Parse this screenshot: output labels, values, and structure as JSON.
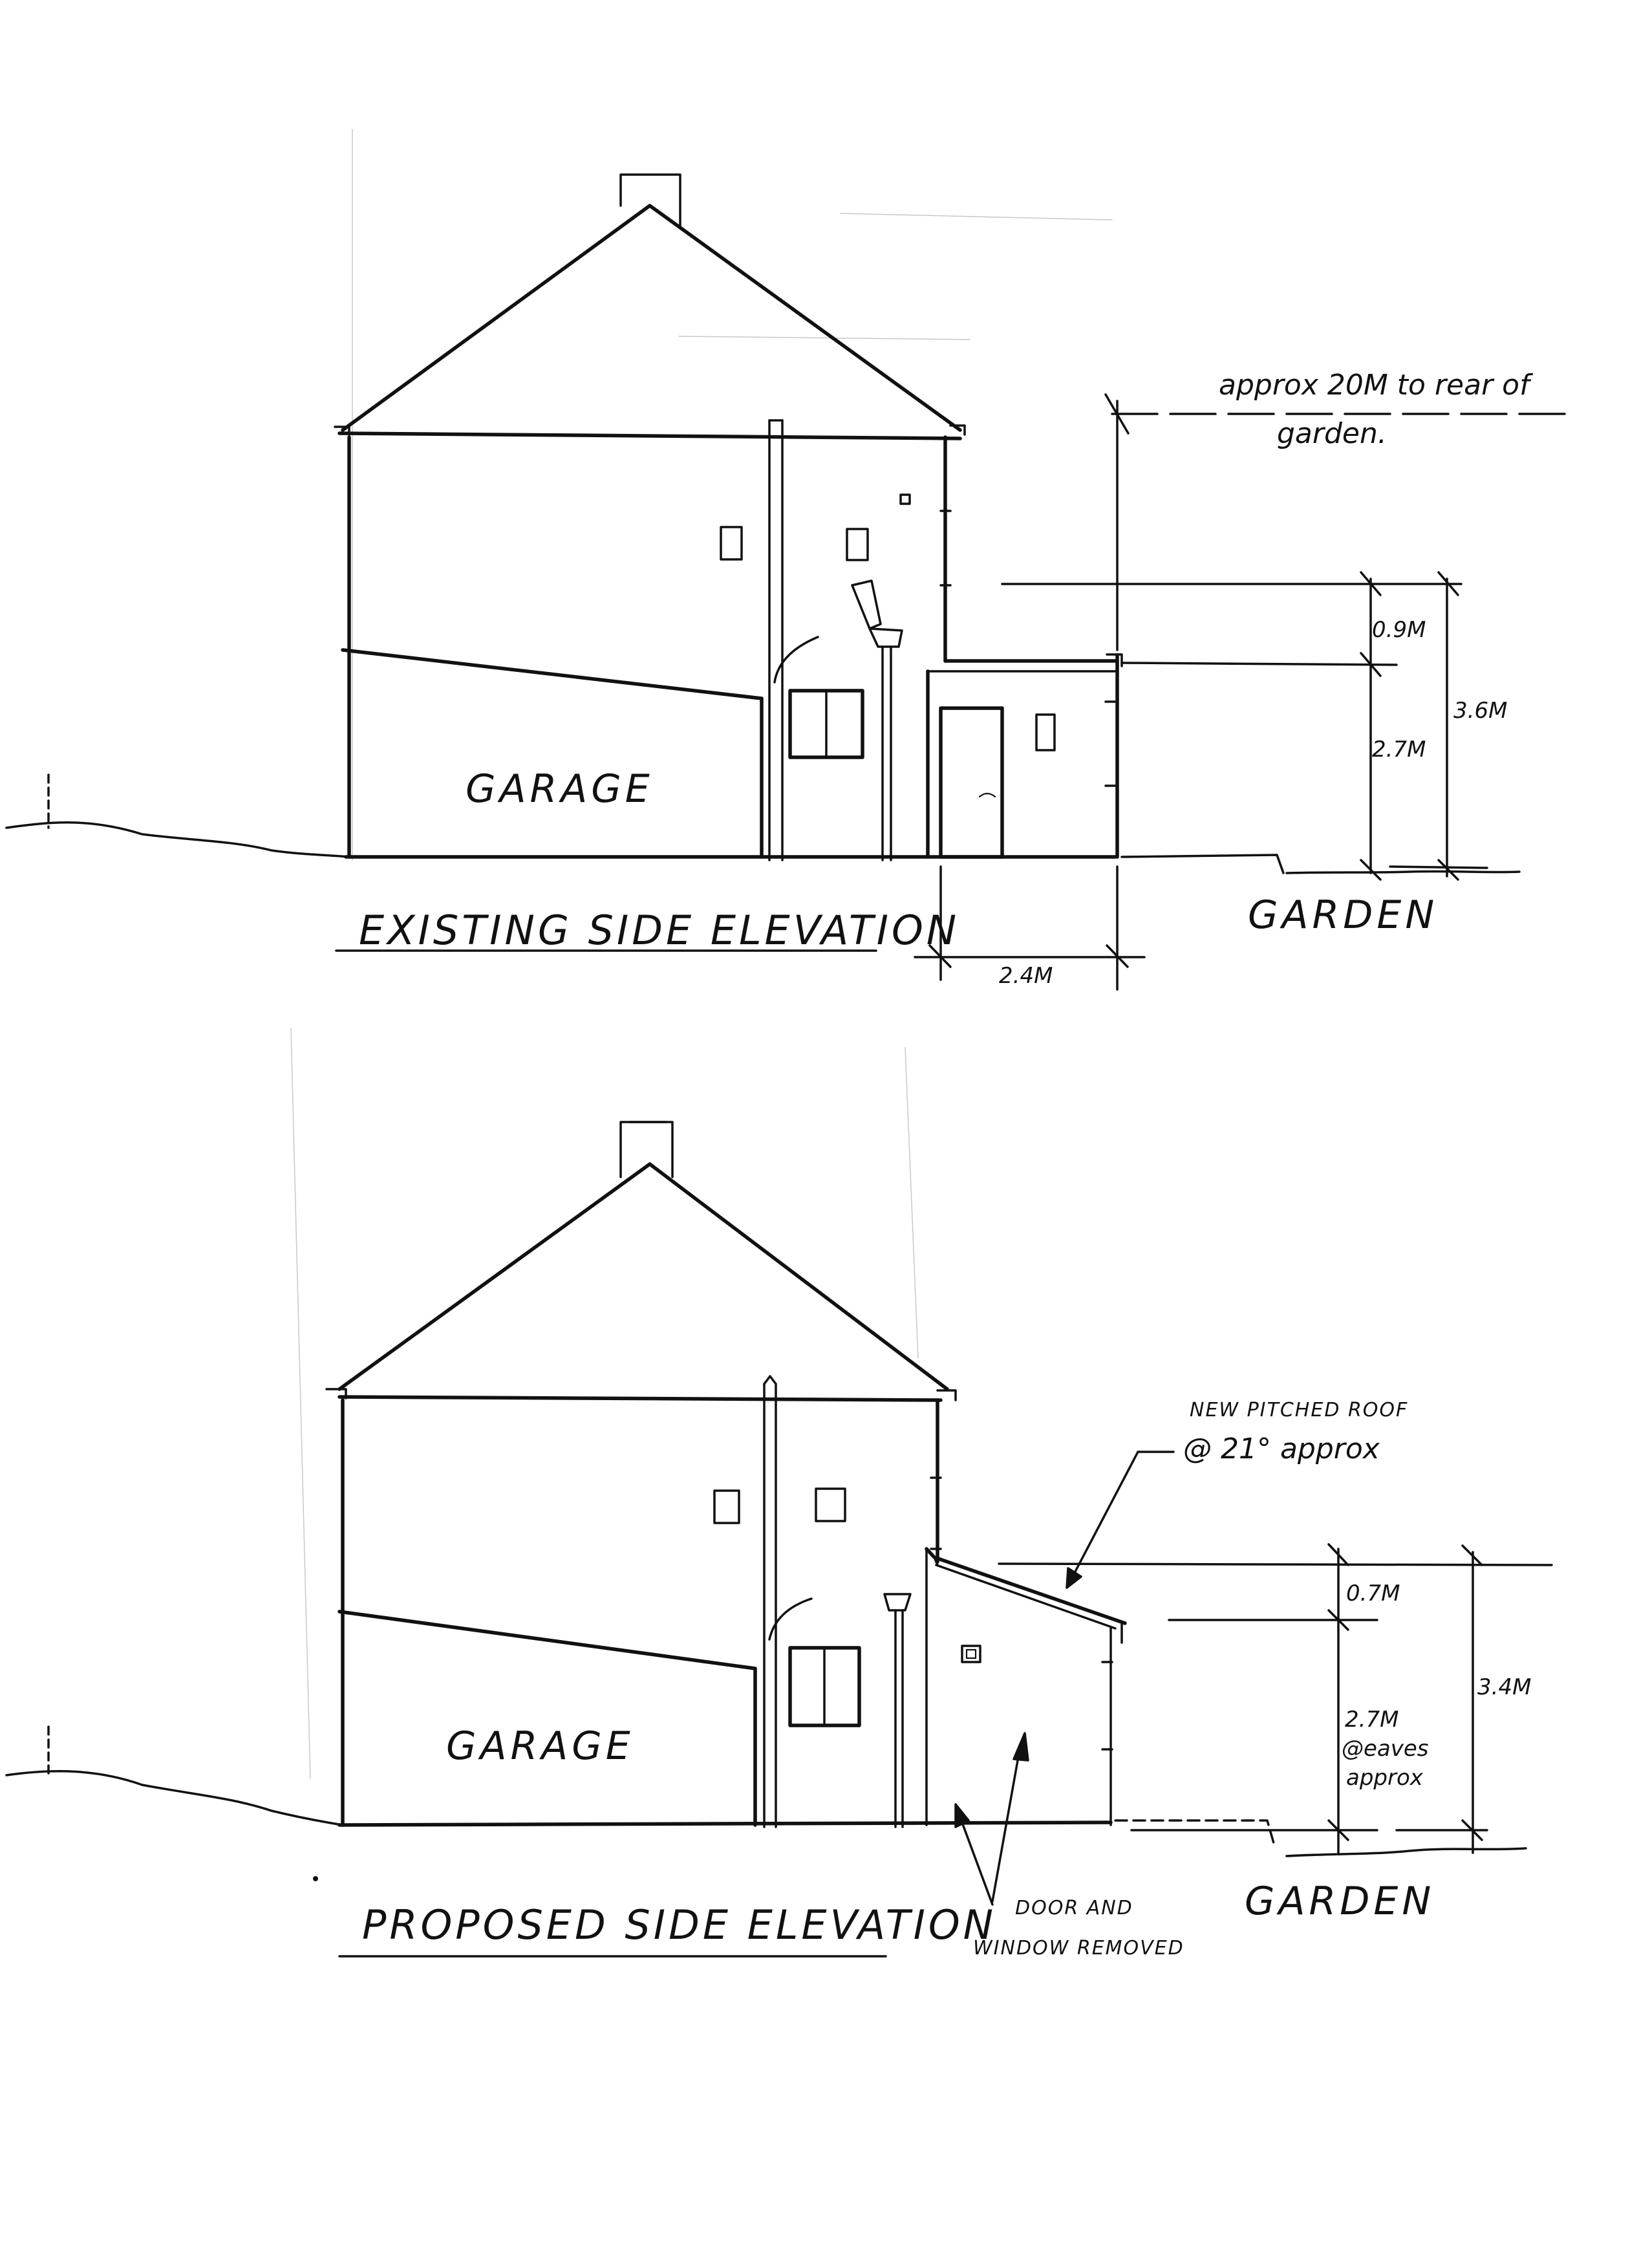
{
  "existing": {
    "title": "EXISTING SIDE ELEVATION",
    "garage_label": "GARAGE",
    "garden_label": "GARDEN",
    "note_line1": "approx 20M to rear of",
    "note_line2": "garden.",
    "dim_upper": "0.9M",
    "dim_lower": "2.7M",
    "dim_total": "3.6M",
    "dim_width": "2.4M"
  },
  "proposed": {
    "title": "PROPOSED SIDE ELEVATION",
    "garage_label": "GARAGE",
    "garden_label": "GARDEN",
    "roof_note_line1": "NEW PITCHED ROOF",
    "roof_note_line2": "@ 21° approx",
    "dim_upper": "0.7M",
    "dim_lower_1": "2.7M",
    "dim_lower_2": "@eaves",
    "dim_lower_3": "approx",
    "dim_total": "3.4M",
    "removed_note_line1": "DOOR AND",
    "removed_note_line2": "WINDOW REMOVED"
  }
}
